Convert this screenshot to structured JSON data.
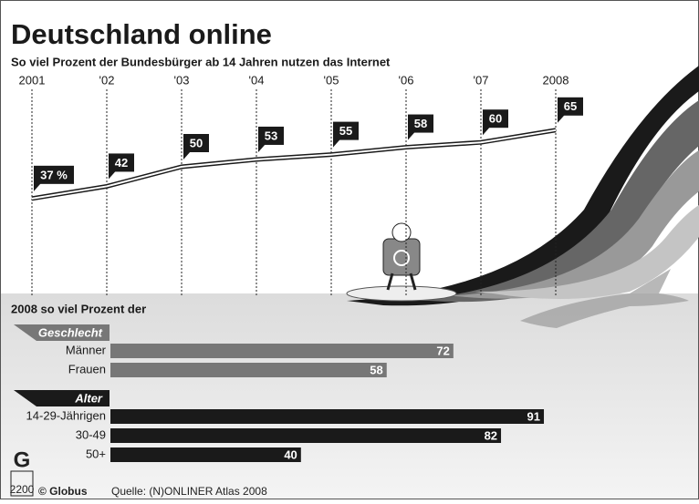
{
  "chart_data": [
    {
      "type": "line",
      "title": "Deutschland online",
      "subtitle": "So viel Prozent der Bundesbürger ab 14 Jahren nutzen das Internet",
      "categories": [
        "2001",
        "'02",
        "'03",
        "'04",
        "'05",
        "'06",
        "'07",
        "2008"
      ],
      "values": [
        37,
        42,
        50,
        53,
        55,
        58,
        60,
        65
      ],
      "value_labels": [
        "37 %",
        "42",
        "50",
        "53",
        "55",
        "58",
        "60",
        "65"
      ],
      "color": "#1a1a1a"
    },
    {
      "type": "hbar",
      "title": "2008 so viel Prozent der",
      "groups": [
        {
          "name": "Geschlecht",
          "categories": [
            "Männer",
            "Frauen"
          ],
          "values": [
            72,
            58
          ],
          "color": "#777777"
        },
        {
          "name": "Alter",
          "categories": [
            "14-29-Jährigen",
            "30-49",
            "50+"
          ],
          "values": [
            91,
            82,
            40
          ],
          "color": "#1a1a1a"
        }
      ]
    }
  ],
  "footer": {
    "logo": "G",
    "number": "2200",
    "credit": "© Globus",
    "source": "Quelle: (N)ONLINER Atlas 2008"
  }
}
